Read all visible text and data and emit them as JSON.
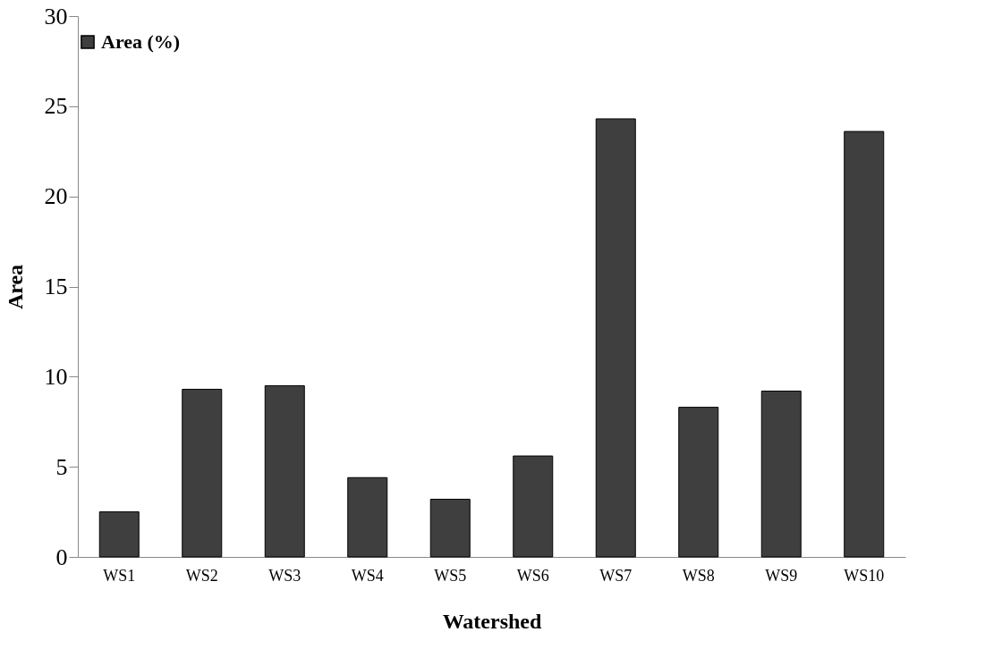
{
  "chart_data": {
    "type": "bar",
    "xlabel": "Watershed",
    "ylabel": "Area",
    "categories": [
      "WS1",
      "WS2",
      "WS3",
      "WS4",
      "WS5",
      "WS6",
      "WS7",
      "WS8",
      "WS9",
      "WS10"
    ],
    "series": [
      {
        "name": "Area (%)",
        "color": "#3f3f3f",
        "values": [
          2.5,
          9.3,
          9.5,
          4.4,
          3.2,
          5.6,
          24.3,
          8.3,
          9.2,
          23.6
        ]
      }
    ],
    "ylim": [
      0,
      30
    ],
    "yticks": [
      0,
      5,
      10,
      15,
      20,
      25,
      30
    ],
    "grid": false,
    "legend": "top"
  }
}
